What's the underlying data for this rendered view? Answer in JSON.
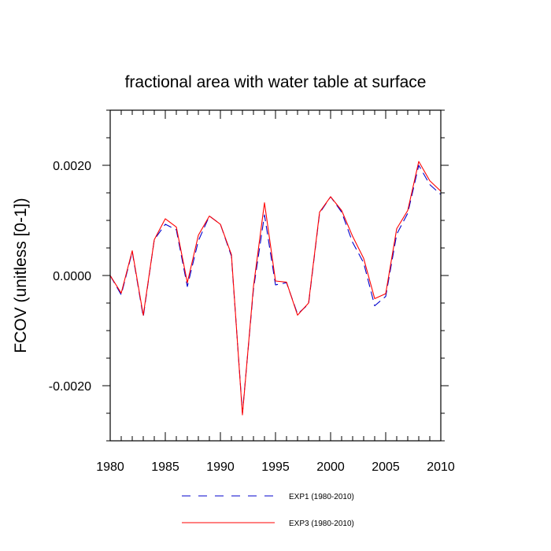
{
  "chart_data": {
    "type": "line",
    "title": "fractional area with water table at surface",
    "xlabel": "",
    "ylabel": "FCOV  (unitless [0-1])",
    "xlim": [
      1980,
      2010
    ],
    "ylim": [
      -0.003,
      0.003
    ],
    "x_ticks": [
      1980,
      1985,
      1990,
      1995,
      2000,
      2005,
      2010
    ],
    "x_tick_labels": [
      "1980",
      "1985",
      "1990",
      "1995",
      "2000",
      "2005",
      "2010"
    ],
    "y_ticks": [
      -0.002,
      0.0,
      0.002
    ],
    "y_tick_labels": [
      "-0.0020",
      "0.0000",
      "0.0020"
    ],
    "grid": false,
    "legend_position": "bottom",
    "x": [
      1980,
      1981,
      1982,
      1983,
      1984,
      1985,
      1986,
      1987,
      1988,
      1989,
      1990,
      1991,
      1992,
      1993,
      1994,
      1995,
      1996,
      1997,
      1998,
      1999,
      2000,
      2001,
      2002,
      2003,
      2004,
      2005,
      2006,
      2007,
      2008,
      2009,
      2010
    ],
    "series": [
      {
        "name": "EXP1 (1980-2010)",
        "color": "#0000cc",
        "dash": "dashed",
        "values": [
          0.0,
          -0.00035,
          0.00043,
          -0.00075,
          0.00065,
          0.00093,
          0.00083,
          -0.0002,
          0.00063,
          0.00108,
          0.00093,
          0.00035,
          -0.0025,
          -0.00025,
          0.0011,
          -0.00017,
          -0.00013,
          -0.0007,
          -0.00052,
          0.00113,
          0.00143,
          0.00115,
          0.0006,
          0.00023,
          -0.00055,
          -0.00038,
          0.00075,
          0.00113,
          0.002,
          0.00165,
          0.00147
        ]
      },
      {
        "name": "EXP3 (1980-2010)",
        "color": "#ff0000",
        "dash": "solid",
        "values": [
          0.0,
          -0.00032,
          0.00045,
          -0.00072,
          0.00065,
          0.00103,
          0.00088,
          -0.00013,
          0.00073,
          0.00108,
          0.00093,
          0.00038,
          -0.00253,
          -0.0002,
          0.00132,
          -0.0001,
          -0.00012,
          -0.00072,
          -0.0005,
          0.00115,
          0.00143,
          0.00118,
          0.00071,
          0.00031,
          -0.00042,
          -0.00033,
          0.00085,
          0.00118,
          0.00207,
          0.00172,
          0.00153
        ]
      }
    ]
  }
}
